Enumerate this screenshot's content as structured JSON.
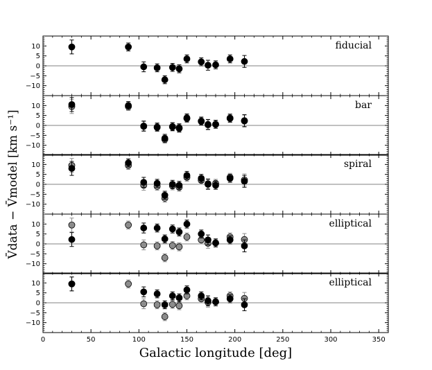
{
  "chart_data": {
    "type": "scatter",
    "layout": "5 vertically stacked panels sharing one x axis",
    "xlabel": "Galactic longitude [deg]",
    "ylabel": "V̄data − V̄model [km s⁻¹]",
    "xlim": [
      0,
      360
    ],
    "ylim": [
      -15,
      15
    ],
    "x_ticks": [
      0,
      50,
      100,
      150,
      200,
      250,
      300,
      350
    ],
    "y_ticks": [
      -10,
      -5,
      0,
      5,
      10
    ],
    "zero_line": true,
    "grid": false,
    "colors": {
      "primary": "#000000",
      "comparison": "#8c8c8c",
      "zero_line": "#808080"
    },
    "panels": [
      {
        "label": "fiducial",
        "series": [
          {
            "x": [
              30,
              89,
              105,
              119,
              127,
              135,
              142,
              150,
              165,
              172,
              180,
              195,
              210
            ],
            "y": [
              9.5,
              9.5,
              -0.5,
              -1.0,
              -7.0,
              -0.8,
              -1.5,
              3.5,
              2.0,
              0.3,
              0.5,
              3.5,
              2.2
            ],
            "err": [
              3.5,
              2.0,
              2.5,
              2.0,
              2.0,
              2.0,
              2.0,
              2.0,
              2.0,
              2.5,
              2.0,
              2.0,
              3.0
            ]
          }
        ]
      },
      {
        "label": "bar",
        "series": [
          {
            "x": [
              30,
              89,
              105,
              119,
              127,
              135,
              142,
              150,
              165,
              172,
              180,
              195,
              210
            ],
            "y": [
              9.5,
              9.5,
              -0.5,
              -1.0,
              -7.0,
              -0.8,
              -1.5,
              3.5,
              2.0,
              0.3,
              0.5,
              3.5,
              2.2
            ],
            "err": [
              3.5,
              2.0,
              2.5,
              2.0,
              2.0,
              2.0,
              2.0,
              2.0,
              2.0,
              2.5,
              2.0,
              2.0,
              3.0
            ]
          },
          {
            "x": [
              30,
              89,
              105,
              119,
              127,
              135,
              142,
              150,
              165,
              172,
              180,
              195,
              210
            ],
            "y": [
              10.5,
              10.0,
              -0.3,
              -0.8,
              -6.5,
              -0.6,
              -1.2,
              3.8,
              2.2,
              0.5,
              0.6,
              3.7,
              2.4
            ],
            "err": [
              3.5,
              2.0,
              2.5,
              2.0,
              2.0,
              2.0,
              2.0,
              2.0,
              2.0,
              2.5,
              2.0,
              2.0,
              3.0
            ]
          }
        ]
      },
      {
        "label": "spiral",
        "series": [
          {
            "x": [
              30,
              89,
              105,
              119,
              127,
              135,
              142,
              150,
              165,
              172,
              180,
              195,
              210
            ],
            "y": [
              9.5,
              9.5,
              -0.5,
              -1.0,
              -7.0,
              -0.8,
              -1.5,
              3.5,
              2.0,
              0.3,
              0.5,
              3.5,
              2.2
            ],
            "err": [
              3.5,
              2.0,
              2.5,
              2.0,
              2.0,
              2.0,
              2.0,
              2.0,
              2.0,
              2.5,
              2.0,
              2.0,
              3.0
            ]
          },
          {
            "x": [
              30,
              89,
              105,
              119,
              127,
              135,
              142,
              150,
              165,
              172,
              180,
              195,
              210
            ],
            "y": [
              8.0,
              10.8,
              1.0,
              0.5,
              -5.5,
              0.0,
              -0.5,
              4.5,
              3.0,
              0.0,
              -0.5,
              3.0,
              1.5
            ],
            "err": [
              3.5,
              2.0,
              2.5,
              2.0,
              2.0,
              2.0,
              2.0,
              2.0,
              2.0,
              2.5,
              2.0,
              2.0,
              3.0
            ]
          }
        ]
      },
      {
        "label": "elliptical",
        "series": [
          {
            "x": [
              30,
              89,
              105,
              119,
              127,
              135,
              142,
              150,
              165,
              172,
              180,
              195,
              210
            ],
            "y": [
              9.5,
              9.5,
              -0.5,
              -1.0,
              -7.0,
              -0.8,
              -1.5,
              3.5,
              2.0,
              0.3,
              0.5,
              3.5,
              2.2
            ],
            "err": [
              3.5,
              2.0,
              2.5,
              2.0,
              2.0,
              2.0,
              2.0,
              2.0,
              2.0,
              2.5,
              2.0,
              2.0,
              3.0
            ]
          },
          {
            "x": [
              30,
              105,
              119,
              127,
              135,
              142,
              150,
              165,
              172,
              180,
              195,
              210
            ],
            "y": [
              2.2,
              8.0,
              8.0,
              2.5,
              7.5,
              6.0,
              10.0,
              5.0,
              2.0,
              0.5,
              2.0,
              -1.0
            ],
            "err": [
              3.5,
              2.5,
              2.0,
              2.0,
              2.0,
              2.0,
              2.0,
              2.0,
              2.5,
              2.0,
              2.0,
              3.0
            ]
          }
        ]
      },
      {
        "label": "elliptical",
        "series": [
          {
            "x": [
              30,
              89,
              105,
              119,
              127,
              135,
              142,
              150,
              165,
              172,
              180,
              195,
              210
            ],
            "y": [
              9.5,
              9.5,
              -0.5,
              -1.0,
              -7.0,
              -0.8,
              -1.5,
              3.5,
              2.0,
              0.3,
              0.5,
              3.5,
              2.2
            ],
            "err": [
              3.5,
              2.0,
              2.5,
              2.0,
              2.0,
              2.0,
              2.0,
              2.0,
              2.0,
              2.5,
              2.0,
              2.0,
              3.0
            ]
          },
          {
            "x": [
              30,
              105,
              119,
              127,
              135,
              142,
              150,
              165,
              172,
              180,
              195,
              210
            ],
            "y": [
              9.5,
              5.5,
              4.5,
              -1.0,
              3.5,
              2.5,
              6.5,
              3.5,
              1.0,
              0.5,
              2.0,
              -1.0
            ],
            "err": [
              3.5,
              2.5,
              2.0,
              2.0,
              2.0,
              2.0,
              2.0,
              2.0,
              2.5,
              2.0,
              2.0,
              3.0
            ]
          }
        ]
      }
    ]
  }
}
